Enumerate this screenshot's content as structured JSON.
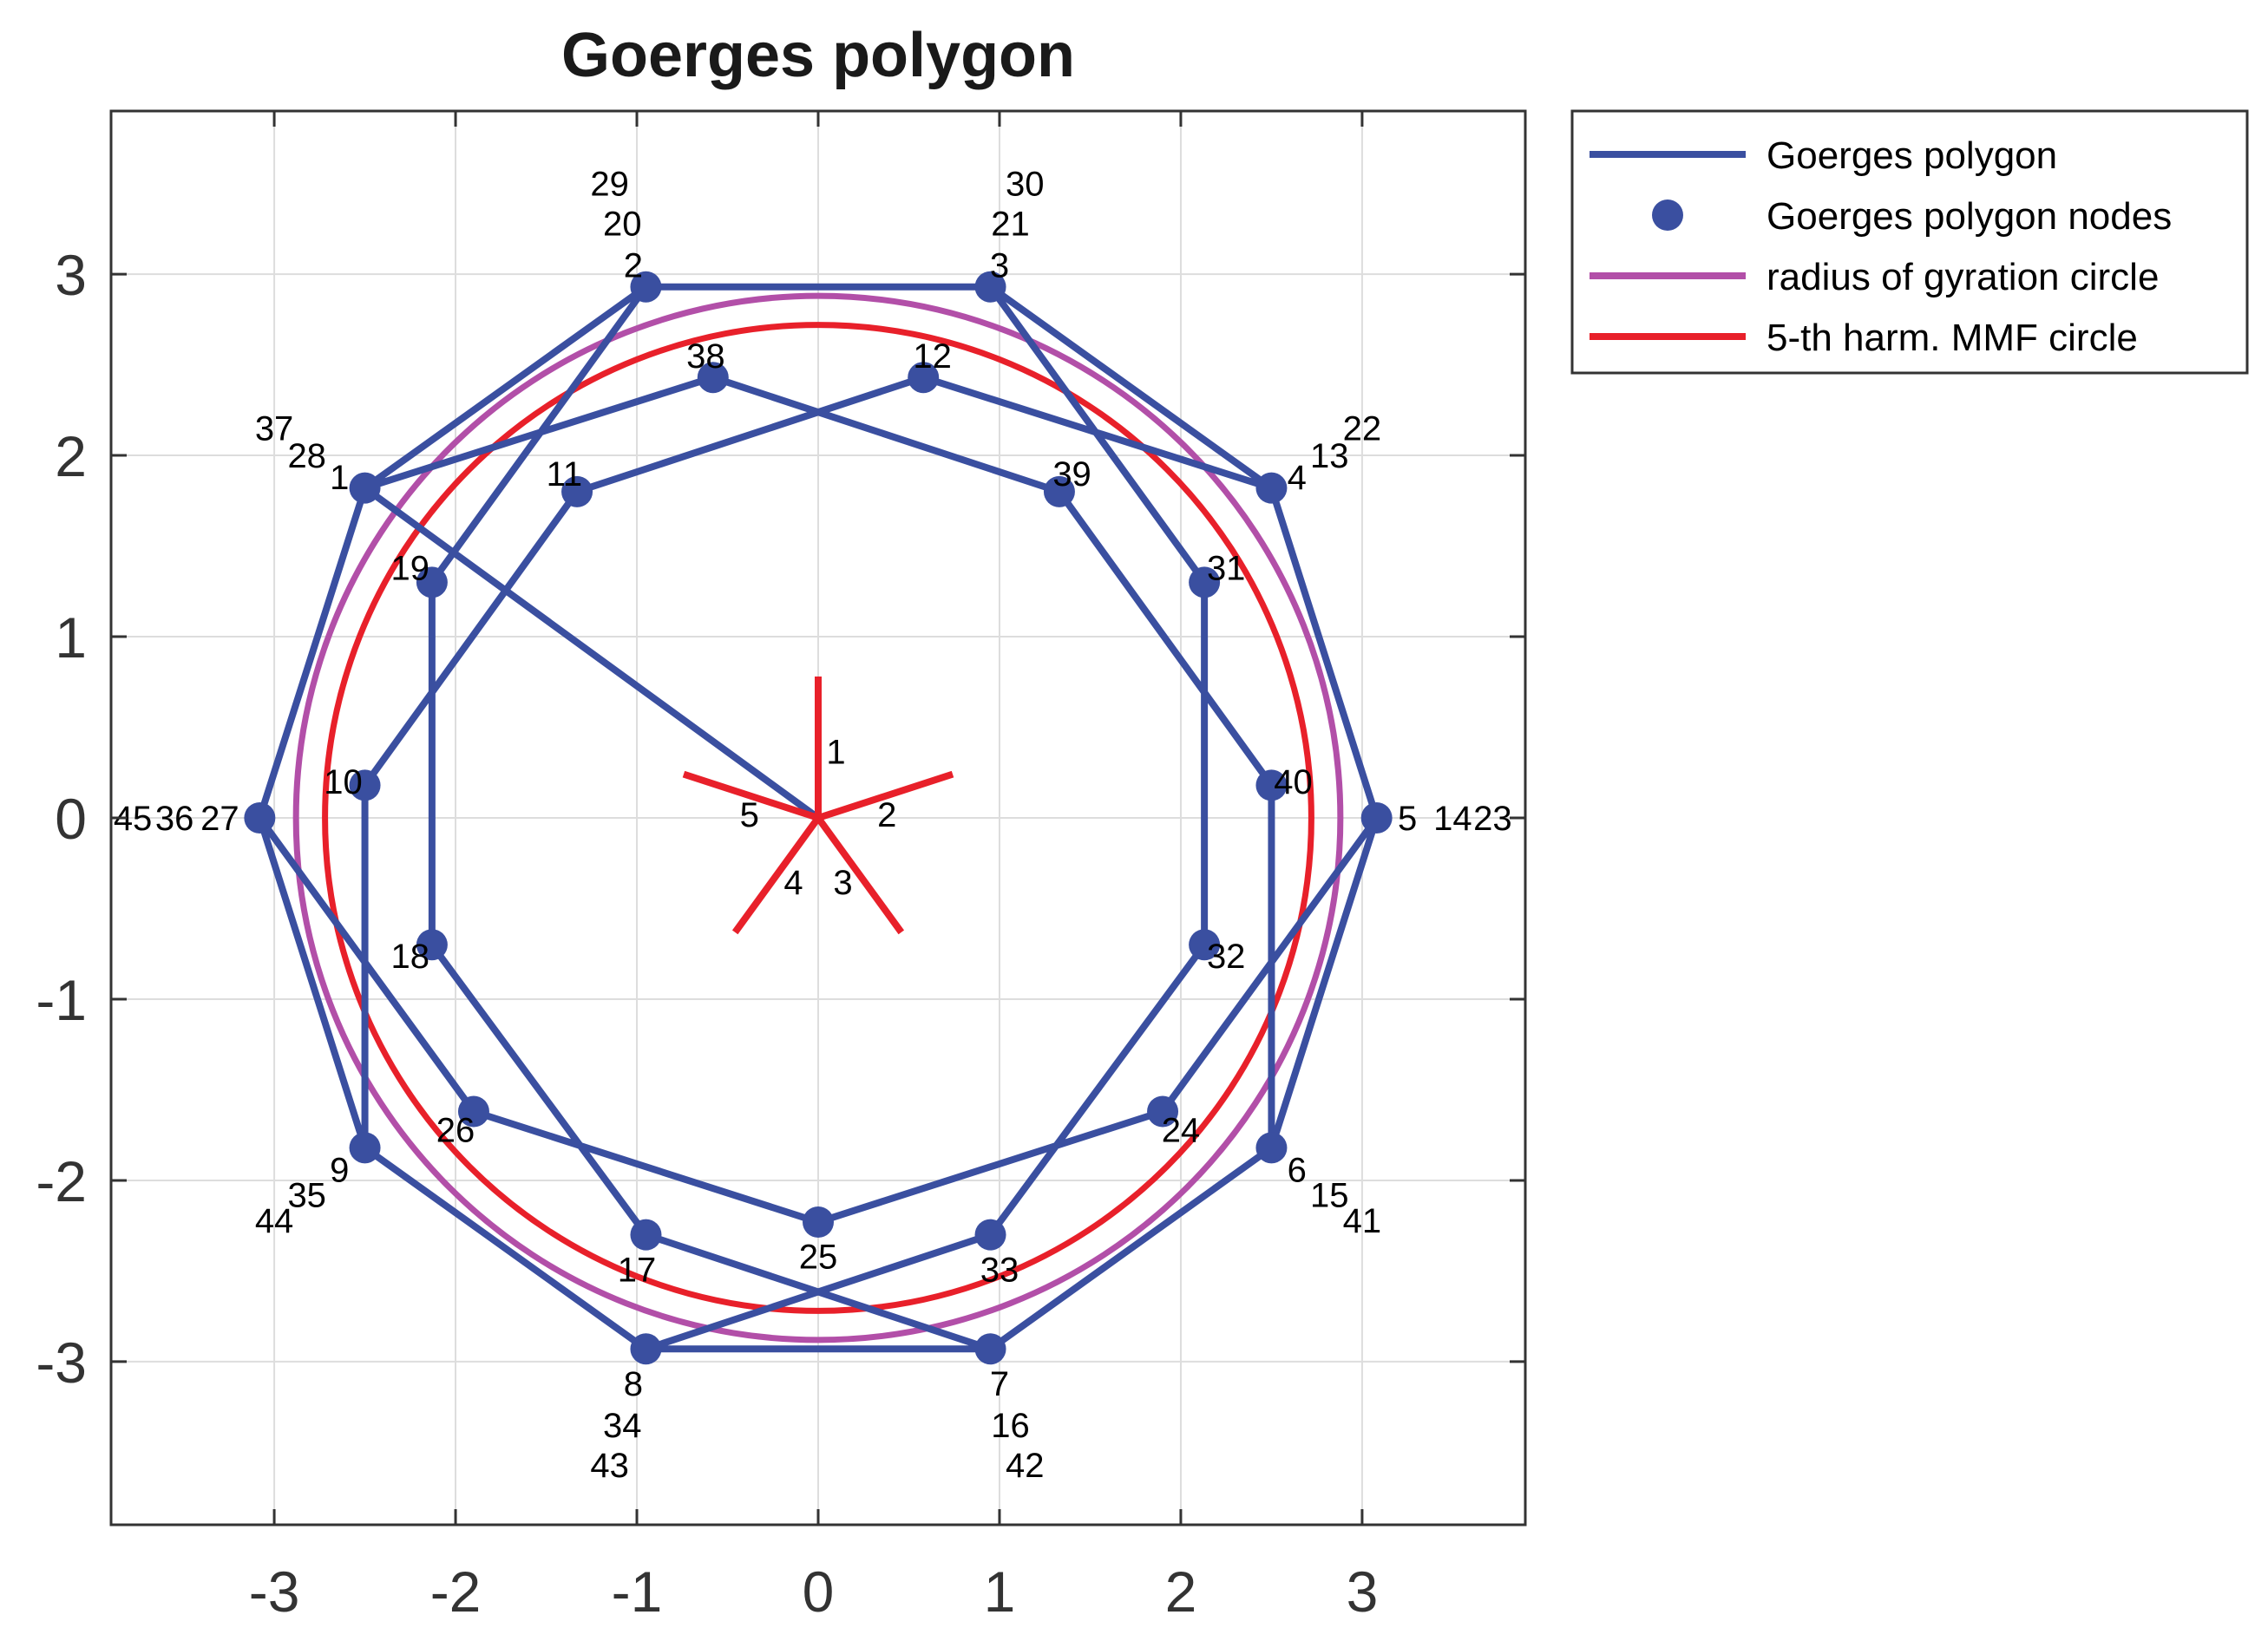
{
  "chart_data": {
    "type": "line",
    "title": "Goerges polygon",
    "xlabel": "",
    "ylabel": "",
    "xlim": [
      -3.9,
      3.9
    ],
    "ylim": [
      -3.9,
      3.9
    ],
    "xticks": [
      -3,
      -2,
      -1,
      0,
      1,
      2,
      3
    ],
    "yticks": [
      -3,
      -2,
      -1,
      0,
      1,
      2,
      3
    ],
    "xtick_labels": [
      "-3",
      "-2",
      "-1",
      "0",
      "1",
      "2",
      "3"
    ],
    "ytick_labels": [
      "-3",
      "-2",
      "-1",
      "0",
      "1",
      "2",
      "3"
    ],
    "grid": true,
    "legend_position": "outside-top-right",
    "colors": {
      "polygon": "#3a4fa0",
      "gyration": "#b24fa8",
      "mmf": "#e8202a",
      "phasor": "#e8202a",
      "axes": "#333333",
      "grid": "#dddddd"
    },
    "legend": [
      {
        "label": "Goerges polygon",
        "style": "line",
        "color": "#3a4fa0"
      },
      {
        "label": "Goerges polygon nodes",
        "style": "marker",
        "color": "#3a4fa0"
      },
      {
        "label": "radius of gyration circle",
        "style": "line",
        "color": "#b24fa8"
      },
      {
        "label": "5-th harm. MMF circle",
        "style": "line",
        "color": "#e8202a"
      }
    ],
    "polygon_path": [
      [
        0,
        0
      ],
      [
        -2.5,
        1.82
      ],
      [
        -0.95,
        2.93
      ],
      [
        0.95,
        2.93
      ],
      [
        2.5,
        1.82
      ],
      [
        3.08,
        0
      ],
      [
        2.5,
        -1.82
      ],
      [
        0.95,
        -2.93
      ],
      [
        -0.95,
        -2.93
      ],
      [
        -2.5,
        -1.82
      ],
      [
        -2.5,
        0.18
      ],
      [
        -1.33,
        1.8
      ],
      [
        0.58,
        2.43
      ],
      [
        2.5,
        1.82
      ],
      [
        3.08,
        0
      ],
      [
        2.5,
        -1.82
      ],
      [
        0.95,
        -2.93
      ],
      [
        -0.95,
        -2.3
      ],
      [
        -2.13,
        -0.7
      ],
      [
        -2.13,
        1.3
      ],
      [
        -0.95,
        2.93
      ],
      [
        0.95,
        2.93
      ],
      [
        2.5,
        1.82
      ],
      [
        3.08,
        0
      ],
      [
        1.9,
        -1.62
      ],
      [
        0,
        -2.23
      ],
      [
        -1.9,
        -1.62
      ],
      [
        -3.08,
        0
      ],
      [
        -2.5,
        1.82
      ],
      [
        -0.95,
        2.93
      ],
      [
        0.95,
        2.93
      ],
      [
        2.13,
        1.3
      ],
      [
        2.13,
        -0.7
      ],
      [
        0.95,
        -2.3
      ],
      [
        -0.95,
        -2.93
      ],
      [
        -2.5,
        -1.82
      ],
      [
        -3.08,
        0
      ],
      [
        -2.5,
        1.82
      ],
      [
        -0.58,
        2.43
      ],
      [
        1.33,
        1.8
      ],
      [
        2.5,
        0.18
      ],
      [
        2.5,
        -1.82
      ],
      [
        0.95,
        -2.93
      ],
      [
        -0.95,
        -2.93
      ],
      [
        -2.5,
        -1.82
      ],
      [
        -3.08,
        0
      ]
    ],
    "node_labels": [
      {
        "text": "1",
        "x": -2.64,
        "y": 1.88
      },
      {
        "text": "28",
        "x": -2.82,
        "y": 2.0
      },
      {
        "text": "37",
        "x": -3.0,
        "y": 2.15
      },
      {
        "text": "2",
        "x": -1.02,
        "y": 3.05
      },
      {
        "text": "20",
        "x": -1.08,
        "y": 3.28
      },
      {
        "text": "29",
        "x": -1.15,
        "y": 3.5
      },
      {
        "text": "3",
        "x": 1.0,
        "y": 3.05
      },
      {
        "text": "21",
        "x": 1.06,
        "y": 3.28
      },
      {
        "text": "30",
        "x": 1.14,
        "y": 3.5
      },
      {
        "text": "4",
        "x": 2.64,
        "y": 1.88
      },
      {
        "text": "13",
        "x": 2.82,
        "y": 2.0
      },
      {
        "text": "22",
        "x": 3.0,
        "y": 2.15
      },
      {
        "text": "5",
        "x": 3.25,
        "y": 0
      },
      {
        "text": "14",
        "x": 3.5,
        "y": 0
      },
      {
        "text": "23",
        "x": 3.72,
        "y": 0
      },
      {
        "text": "6",
        "x": 2.64,
        "y": -1.94
      },
      {
        "text": "15",
        "x": 2.82,
        "y": -2.08
      },
      {
        "text": "41",
        "x": 3.0,
        "y": -2.22
      },
      {
        "text": "7",
        "x": 1.0,
        "y": -3.12
      },
      {
        "text": "16",
        "x": 1.06,
        "y": -3.35
      },
      {
        "text": "42",
        "x": 1.14,
        "y": -3.57
      },
      {
        "text": "8",
        "x": -1.02,
        "y": -3.12
      },
      {
        "text": "34",
        "x": -1.08,
        "y": -3.35
      },
      {
        "text": "43",
        "x": -1.15,
        "y": -3.57
      },
      {
        "text": "9",
        "x": -2.64,
        "y": -1.94
      },
      {
        "text": "35",
        "x": -2.82,
        "y": -2.08
      },
      {
        "text": "44",
        "x": -3.0,
        "y": -2.22
      },
      {
        "text": "27",
        "x": -3.3,
        "y": 0
      },
      {
        "text": "36",
        "x": -3.55,
        "y": 0
      },
      {
        "text": "45",
        "x": -3.78,
        "y": 0
      },
      {
        "text": "10",
        "x": -2.62,
        "y": 0.2
      },
      {
        "text": "11",
        "x": -1.4,
        "y": 1.9
      },
      {
        "text": "12",
        "x": 0.63,
        "y": 2.55
      },
      {
        "text": "38",
        "x": -0.62,
        "y": 2.55
      },
      {
        "text": "39",
        "x": 1.4,
        "y": 1.9
      },
      {
        "text": "40",
        "x": 2.62,
        "y": 0.2
      },
      {
        "text": "31",
        "x": 2.25,
        "y": 1.38
      },
      {
        "text": "32",
        "x": 2.25,
        "y": -0.76
      },
      {
        "text": "19",
        "x": -2.25,
        "y": 1.38
      },
      {
        "text": "18",
        "x": -2.25,
        "y": -0.76
      },
      {
        "text": "17",
        "x": -1.0,
        "y": -2.49
      },
      {
        "text": "33",
        "x": 1.0,
        "y": -2.49
      },
      {
        "text": "24",
        "x": 2.0,
        "y": -1.72
      },
      {
        "text": "26",
        "x": -2.0,
        "y": -1.72
      },
      {
        "text": "25",
        "x": 0,
        "y": -2.42
      }
    ],
    "gyration_circle": {
      "cx": 0,
      "cy": 0,
      "r": 2.88
    },
    "mmf_circle": {
      "cx": 0,
      "cy": 0,
      "r": 2.72
    },
    "phasors": [
      {
        "label": "1",
        "angle_deg": 90,
        "length": 0.78,
        "label_r": 0.38,
        "label_angle_deg": 75
      },
      {
        "label": "2",
        "angle_deg": 18,
        "length": 0.78,
        "label_r": 0.38,
        "label_angle_deg": 3
      },
      {
        "label": "3",
        "angle_deg": -54,
        "length": 0.78,
        "label_r": 0.38,
        "label_angle_deg": -69
      },
      {
        "label": "4",
        "angle_deg": -126,
        "length": 0.78,
        "label_r": 0.38,
        "label_angle_deg": -111
      },
      {
        "label": "5",
        "angle_deg": 162,
        "length": 0.78,
        "label_r": 0.38,
        "label_angle_deg": 177
      }
    ]
  }
}
